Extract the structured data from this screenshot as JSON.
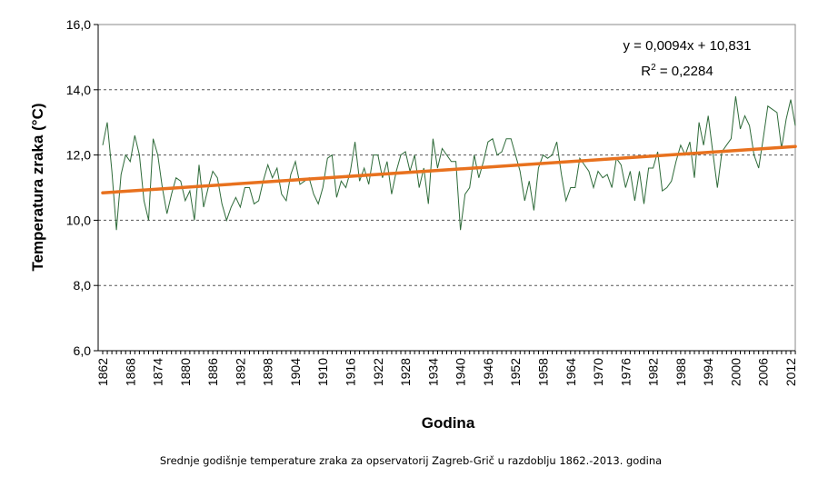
{
  "chart_data": {
    "type": "line",
    "xlabel": "Godina",
    "ylabel": "Temperatura zraka (°C)",
    "caption": "Srednje godišnje temperature zraka za opservatorij Zagreb-Grič u razdoblju 1862.-2013. godina",
    "ylim": [
      6,
      16
    ],
    "yticks": [
      "6,0",
      "8,0",
      "10,0",
      "12,0",
      "14,0",
      "16,0"
    ],
    "ytick_values": [
      6,
      8,
      10,
      12,
      14,
      16
    ],
    "xticks": [
      "1862",
      "1868",
      "1874",
      "1880",
      "1886",
      "1892",
      "1898",
      "1904",
      "1910",
      "1916",
      "1922",
      "1928",
      "1934",
      "1940",
      "1946",
      "1952",
      "1958",
      "1964",
      "1970",
      "1976",
      "1982",
      "1988",
      "1994",
      "2000",
      "2006",
      "2012"
    ],
    "grid": "horizontal dashed",
    "x": [
      1862,
      1863,
      1864,
      1865,
      1866,
      1867,
      1868,
      1869,
      1870,
      1871,
      1872,
      1873,
      1874,
      1875,
      1876,
      1877,
      1878,
      1879,
      1880,
      1881,
      1882,
      1883,
      1884,
      1885,
      1886,
      1887,
      1888,
      1889,
      1890,
      1891,
      1892,
      1893,
      1894,
      1895,
      1896,
      1897,
      1898,
      1899,
      1900,
      1901,
      1902,
      1903,
      1904,
      1905,
      1906,
      1907,
      1908,
      1909,
      1910,
      1911,
      1912,
      1913,
      1914,
      1915,
      1916,
      1917,
      1918,
      1919,
      1920,
      1921,
      1922,
      1923,
      1924,
      1925,
      1926,
      1927,
      1928,
      1929,
      1930,
      1931,
      1932,
      1933,
      1934,
      1935,
      1936,
      1937,
      1938,
      1939,
      1940,
      1941,
      1942,
      1943,
      1944,
      1945,
      1946,
      1947,
      1948,
      1949,
      1950,
      1951,
      1952,
      1953,
      1954,
      1955,
      1956,
      1957,
      1958,
      1959,
      1960,
      1961,
      1962,
      1963,
      1964,
      1965,
      1966,
      1967,
      1968,
      1969,
      1970,
      1971,
      1972,
      1973,
      1974,
      1975,
      1976,
      1977,
      1978,
      1979,
      1980,
      1981,
      1982,
      1983,
      1984,
      1985,
      1986,
      1987,
      1988,
      1989,
      1990,
      1991,
      1992,
      1993,
      1994,
      1995,
      1996,
      1997,
      1998,
      1999,
      2000,
      2001,
      2002,
      2003,
      2004,
      2005,
      2006,
      2007,
      2008,
      2009,
      2010,
      2011,
      2012,
      2013
    ],
    "series": [
      {
        "values": [
          12.3,
          13.0,
          11.5,
          9.7,
          11.4,
          12.0,
          11.8,
          12.6,
          12.0,
          10.6,
          10.0,
          12.5,
          12.0,
          11.0,
          10.2,
          10.8,
          11.3,
          11.2,
          10.6,
          10.9,
          10.0,
          11.7,
          10.4,
          11.0,
          11.5,
          11.3,
          10.5,
          10.0,
          10.4,
          10.7,
          10.4,
          11.0,
          11.0,
          10.5,
          10.6,
          11.2,
          11.7,
          11.3,
          11.6,
          10.8,
          10.6,
          11.4,
          11.8,
          11.1,
          11.2,
          11.3,
          10.8,
          10.5,
          11.0,
          11.9,
          12.0,
          10.7,
          11.2,
          11.0,
          11.5,
          12.4,
          11.2,
          11.6,
          11.1,
          12.0,
          12.0,
          11.3,
          11.8,
          10.8,
          11.5,
          12.0,
          12.1,
          11.5,
          12.0,
          11.0,
          11.6,
          10.5,
          12.5,
          11.6,
          12.2,
          12.0,
          11.8,
          11.8,
          9.7,
          10.8,
          11.0,
          12.0,
          11.3,
          11.8,
          12.4,
          12.5,
          12.0,
          12.1,
          12.5,
          12.5,
          12.0,
          11.5,
          10.6,
          11.2,
          10.3,
          11.6,
          12.0,
          11.9,
          12.0,
          12.4,
          11.4,
          10.6,
          11.0,
          11.0,
          11.9,
          11.7,
          11.5,
          11.0,
          11.5,
          11.3,
          11.4,
          11.0,
          11.9,
          11.7,
          11.0,
          11.5,
          10.6,
          11.5,
          10.5,
          11.6,
          11.6,
          12.1,
          10.9,
          11.0,
          11.2,
          11.8,
          12.3,
          12.0,
          12.4,
          11.3,
          13.0,
          12.3,
          13.2,
          12.1,
          11.0,
          12.1,
          12.3,
          12.5,
          13.8,
          12.8,
          13.2,
          12.9,
          12.0,
          11.6,
          12.5,
          13.5,
          13.4,
          13.3,
          12.2,
          13.1,
          13.7,
          12.9
        ],
        "color": "#2f6b3a"
      }
    ],
    "trendline": {
      "slope": 0.0094,
      "intercept": 10.831,
      "color": "#e8711e",
      "equation": "y = 0,0094x + 10,831",
      "r2_prefix": "R",
      "r2_value": " = 0,2284"
    }
  }
}
